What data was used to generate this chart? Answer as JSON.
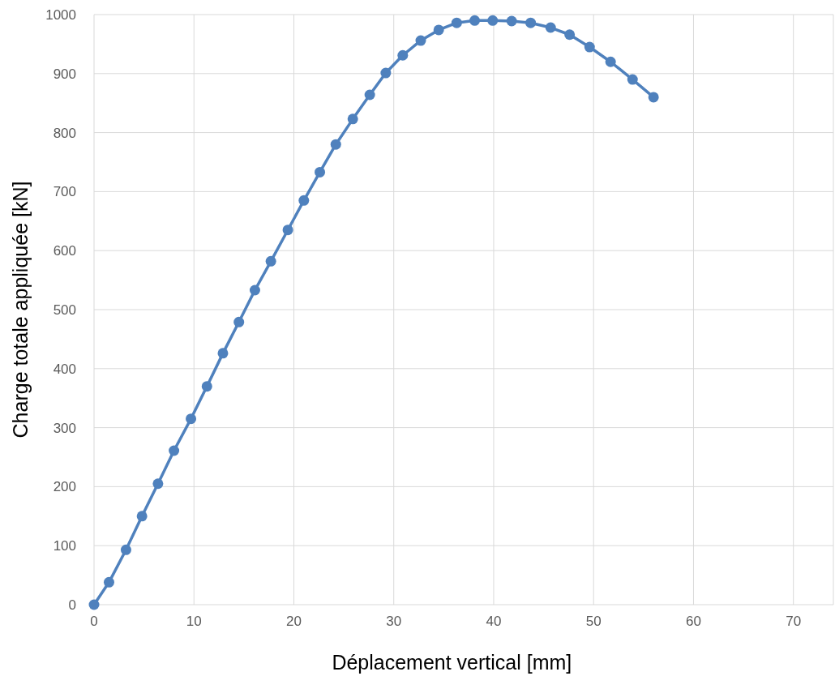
{
  "chart_data": {
    "type": "line",
    "xlabel": "Déplacement vertical [mm]",
    "ylabel": "Charge totale appliquée [kN]",
    "xlim": [
      0,
      74
    ],
    "xticks": [
      0,
      10,
      20,
      30,
      40,
      50,
      60,
      70
    ],
    "ylim": [
      0,
      1000
    ],
    "yticks": [
      0,
      100,
      200,
      300,
      400,
      500,
      600,
      700,
      800,
      900,
      1000
    ],
    "grid": true,
    "marker": "circle",
    "line_style": "solid",
    "series": [
      {
        "color": "#4f81bd",
        "x": [
          0,
          1.5,
          3.2,
          4.8,
          6.4,
          8,
          9.7,
          11.3,
          12.9,
          14.5,
          16.1,
          17.7,
          19.4,
          21,
          22.6,
          24.2,
          25.9,
          27.6,
          29.2,
          30.9,
          32.7,
          34.5,
          36.3,
          38.1,
          39.9,
          41.8,
          43.7,
          45.7,
          47.6,
          49.6,
          51.7,
          53.9,
          56
        ],
        "values": [
          0,
          38,
          93,
          150,
          205,
          261,
          315,
          370,
          426,
          479,
          533,
          582,
          635,
          685,
          733,
          780,
          823,
          864,
          901,
          931,
          956,
          974,
          986,
          990,
          990,
          989,
          986,
          978,
          966,
          945,
          920,
          890,
          860
        ]
      }
    ]
  }
}
